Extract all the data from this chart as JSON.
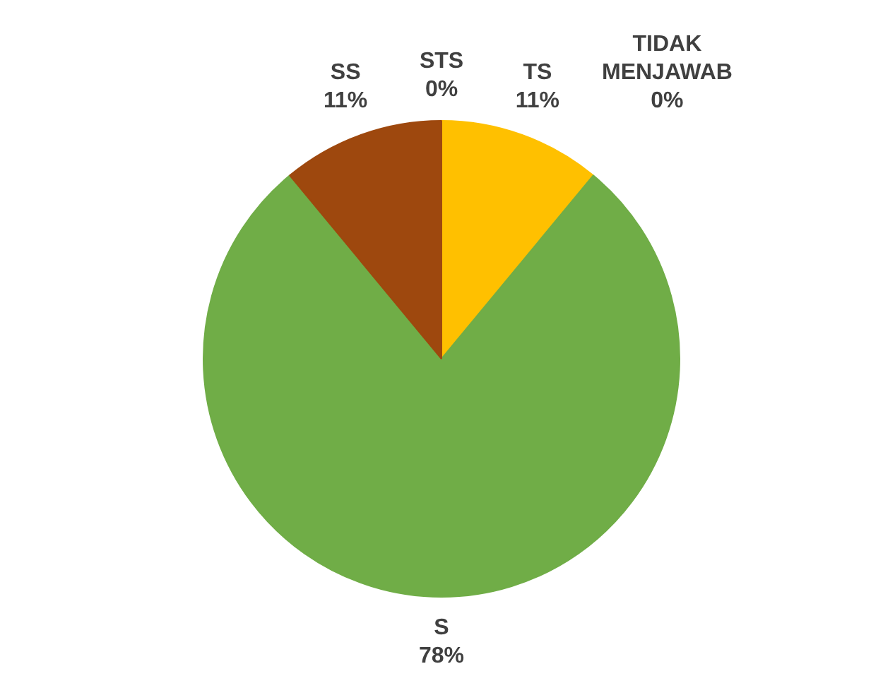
{
  "chart_data": {
    "type": "pie",
    "categories": [
      "STS",
      "TS",
      "S",
      "SS",
      "TIDAK MENJAWAB"
    ],
    "values": [
      0,
      11,
      78,
      11,
      0
    ],
    "value_labels": [
      "0%",
      "11%",
      "78%",
      "11%",
      "0%"
    ],
    "colors": [
      "#ff0000",
      "#ffc000",
      "#70ad47",
      "#9e480e",
      "#5b9bd5"
    ],
    "legend": false
  }
}
